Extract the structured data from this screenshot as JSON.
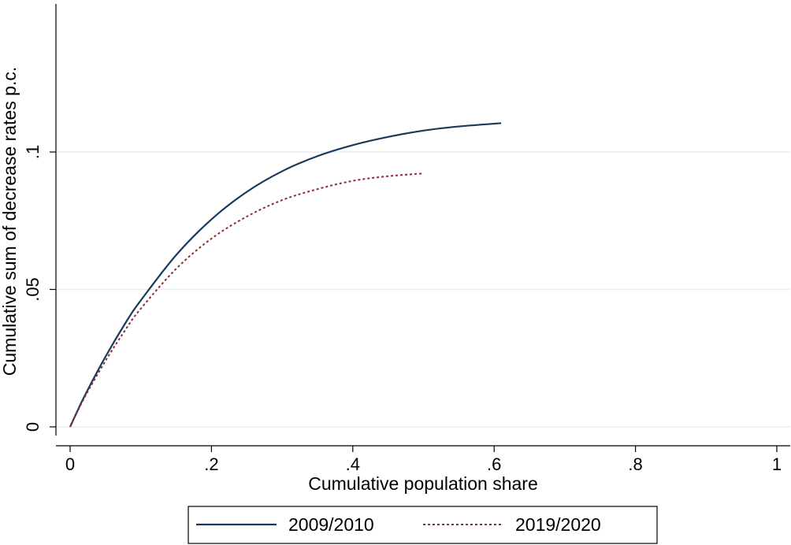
{
  "chart_data": {
    "type": "line",
    "xlabel": "Cumulative population share",
    "ylabel": "Cumulative sum of decrease rates p.c.",
    "xlim": [
      0,
      1
    ],
    "ylim": [
      0,
      0.15
    ],
    "x_ticks": [
      {
        "value": 0,
        "label": "0"
      },
      {
        "value": 0.2,
        "label": ".2"
      },
      {
        "value": 0.4,
        "label": ".4"
      },
      {
        "value": 0.6,
        "label": ".6"
      },
      {
        "value": 0.8,
        "label": ".8"
      },
      {
        "value": 1,
        "label": "1"
      }
    ],
    "y_ticks": [
      {
        "value": 0,
        "label": "0"
      },
      {
        "value": 0.05,
        "label": ".05"
      },
      {
        "value": 0.1,
        "label": ".1"
      }
    ],
    "grid": "horizontal",
    "legend_position": "bottom",
    "series": [
      {
        "name": "2009/2010",
        "color": "#1a3a5c",
        "style": "solid",
        "x": [
          0,
          0.02,
          0.05,
          0.08,
          0.1,
          0.15,
          0.2,
          0.25,
          0.3,
          0.35,
          0.4,
          0.45,
          0.5,
          0.55,
          0.6,
          0.61
        ],
        "y": [
          0,
          0.011,
          0.0255,
          0.0385,
          0.046,
          0.0625,
          0.0755,
          0.0855,
          0.093,
          0.0985,
          0.1025,
          0.1055,
          0.1078,
          0.1093,
          0.1103,
          0.1105
        ]
      },
      {
        "name": "2019/2020",
        "color": "#8b2e3a",
        "style": "dotted",
        "x": [
          0,
          0.02,
          0.05,
          0.08,
          0.1,
          0.15,
          0.2,
          0.25,
          0.3,
          0.35,
          0.4,
          0.45,
          0.5
        ],
        "y": [
          0,
          0.0105,
          0.024,
          0.036,
          0.043,
          0.0575,
          0.0685,
          0.0765,
          0.0825,
          0.0865,
          0.0895,
          0.0912,
          0.0922
        ]
      }
    ]
  }
}
